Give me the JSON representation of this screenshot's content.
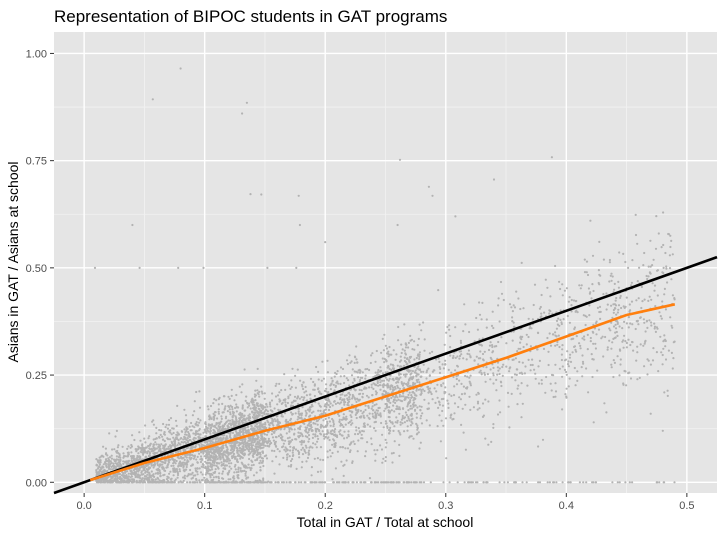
{
  "chart_data": {
    "type": "scatter",
    "title": "Representation of BIPOC students in GAT programs",
    "xlabel": "Total in GAT / Total at school",
    "ylabel": "Asians in GAT / Asians at school",
    "xlim": [
      -0.025,
      0.525
    ],
    "ylim": [
      -0.025,
      1.05
    ],
    "x_ticks": [
      0.0,
      0.1,
      0.2,
      0.3,
      0.4,
      0.5
    ],
    "x_tick_labels": [
      "0.0",
      "0.1",
      "0.2",
      "0.3",
      "0.4",
      "0.5"
    ],
    "y_ticks": [
      0.0,
      0.25,
      0.5,
      0.75,
      1.0
    ],
    "y_tick_labels": [
      "0.00",
      "0.25",
      "0.50",
      "0.75",
      "1.00"
    ],
    "grid": true,
    "background": "#e5e5e5",
    "point_color": "#b3b3b3",
    "reference_line": {
      "slope": 1,
      "intercept": 0,
      "color": "#000000"
    },
    "trend_line": {
      "color": "#ff7f0e",
      "x": [
        0.005,
        0.05,
        0.1,
        0.15,
        0.2,
        0.25,
        0.3,
        0.35,
        0.4,
        0.45,
        0.49
      ],
      "y": [
        0.005,
        0.045,
        0.08,
        0.12,
        0.155,
        0.2,
        0.245,
        0.29,
        0.34,
        0.39,
        0.415
      ]
    },
    "notable_points": [
      {
        "x": 0.08,
        "y": 0.965
      },
      {
        "x": 0.057,
        "y": 0.893
      },
      {
        "x": 0.135,
        "y": 0.885
      },
      {
        "x": 0.131,
        "y": 0.86
      },
      {
        "x": 0.262,
        "y": 0.752
      },
      {
        "x": 0.388,
        "y": 0.758
      },
      {
        "x": 0.138,
        "y": 0.672
      },
      {
        "x": 0.147,
        "y": 0.671
      },
      {
        "x": 0.178,
        "y": 0.668
      },
      {
        "x": 0.289,
        "y": 0.668
      },
      {
        "x": 0.286,
        "y": 0.689
      },
      {
        "x": 0.34,
        "y": 0.706
      },
      {
        "x": 0.308,
        "y": 0.62
      },
      {
        "x": 0.04,
        "y": 0.6
      },
      {
        "x": 0.179,
        "y": 0.6
      },
      {
        "x": 0.26,
        "y": 0.6
      },
      {
        "x": 0.009,
        "y": 0.5
      },
      {
        "x": 0.046,
        "y": 0.5
      },
      {
        "x": 0.078,
        "y": 0.5
      },
      {
        "x": 0.099,
        "y": 0.5
      },
      {
        "x": 0.152,
        "y": 0.5
      },
      {
        "x": 0.176,
        "y": 0.5
      },
      {
        "x": 0.2,
        "y": 0.56
      },
      {
        "x": 0.42,
        "y": 0.61
      },
      {
        "x": 0.4,
        "y": 0.2
      },
      {
        "x": 0.47,
        "y": 0.16
      },
      {
        "x": 0.48,
        "y": 0.12
      }
    ]
  }
}
